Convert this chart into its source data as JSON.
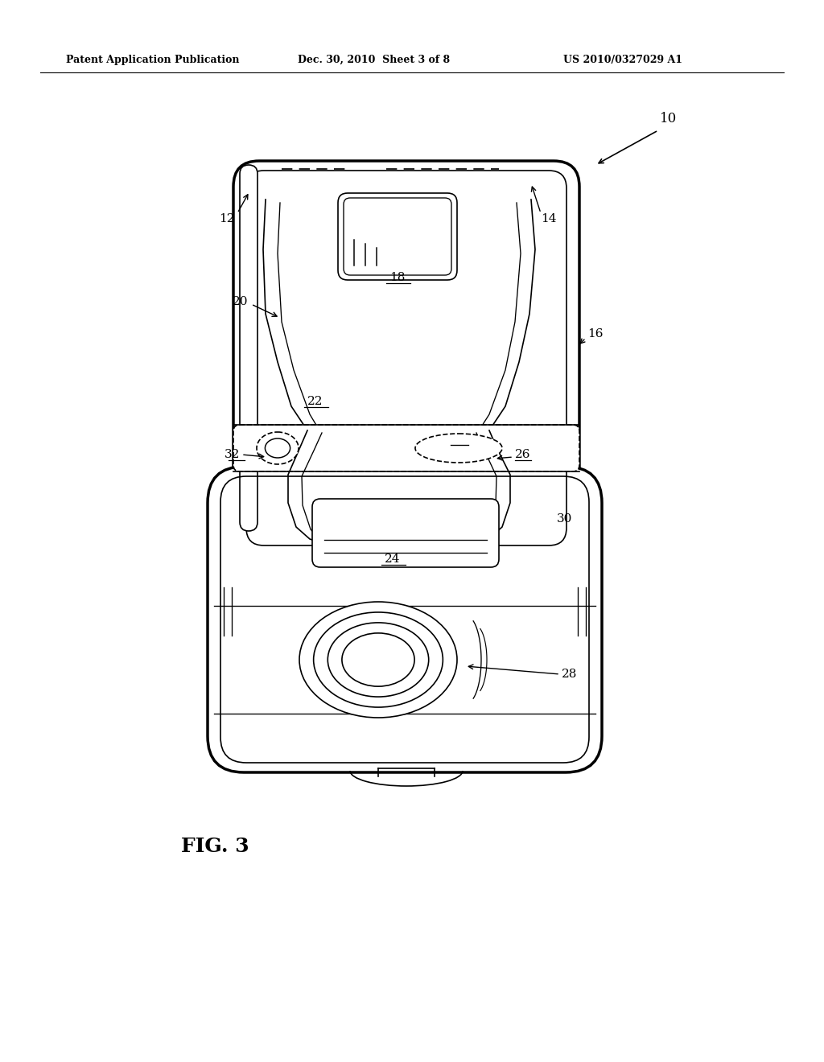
{
  "bg_color": "#ffffff",
  "line_color": "#000000",
  "header_left": "Patent Application Publication",
  "header_center": "Dec. 30, 2010  Sheet 3 of 8",
  "header_right": "US 2010/0327029 A1",
  "fig_label": "FIG. 3",
  "lw_thick": 2.5,
  "lw_main": 2.0,
  "lw_thin": 1.2
}
